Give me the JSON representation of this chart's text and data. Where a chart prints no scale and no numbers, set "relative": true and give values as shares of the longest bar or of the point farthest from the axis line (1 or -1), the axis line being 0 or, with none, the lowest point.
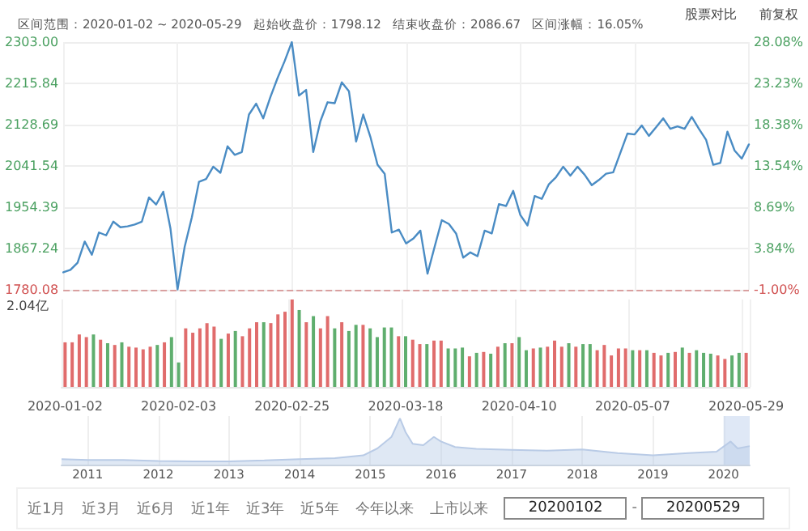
{
  "chart_data": [
    {
      "type": "line",
      "title": "区间范围：2020-01-02 ~ 2020-05-29   起始收盘价：1798.12   结束收盘价：2086.67   区间涨幅：16.05%",
      "annotations": [
        "股票对比",
        "前复权"
      ],
      "categories": [
        "2020-01-02",
        null,
        null,
        null,
        null,
        null,
        null,
        null,
        null,
        null,
        null,
        null,
        null,
        null,
        null,
        null,
        "2020-02-03",
        null,
        null,
        null,
        null,
        null,
        null,
        null,
        null,
        null,
        null,
        null,
        null,
        null,
        null,
        null,
        "2020-02-25",
        null,
        null,
        null,
        null,
        null,
        null,
        null,
        null,
        null,
        null,
        null,
        null,
        null,
        null,
        null,
        "2020-03-18",
        null,
        null,
        null,
        null,
        null,
        null,
        null,
        null,
        null,
        null,
        null,
        null,
        null,
        null,
        null,
        "2020-04-10",
        null,
        null,
        null,
        null,
        null,
        null,
        null,
        null,
        null,
        null,
        null,
        null,
        null,
        null,
        null,
        "2020-05-07",
        null,
        null,
        null,
        null,
        null,
        null,
        null,
        null,
        null,
        null,
        null,
        null,
        null,
        null,
        null,
        "2020-05-29"
      ],
      "series": [
        {
          "color": "#4a8cc4",
          "values": [
            1817,
            1822,
            1837,
            1882,
            1854,
            1901,
            1895,
            1924,
            1912,
            1914,
            1918,
            1924,
            1975,
            1960,
            1987,
            1910,
            1781,
            1871,
            1933,
            2008,
            2014,
            2040,
            2027,
            2083,
            2065,
            2071,
            2150,
            2173,
            2142,
            2187,
            2227,
            2263,
            2303,
            2190,
            2202,
            2071,
            2136,
            2176,
            2174,
            2218,
            2199,
            2093,
            2150,
            2103,
            2044,
            2025,
            1901,
            1907,
            1878,
            1888,
            1905,
            1814,
            1871,
            1927,
            1919,
            1899,
            1848,
            1859,
            1851,
            1905,
            1899,
            1961,
            1957,
            1989,
            1938,
            1916,
            1978,
            1972,
            2003,
            2018,
            2040,
            2021,
            2040,
            2023,
            2001,
            2012,
            2025,
            2028,
            2069,
            2110,
            2108,
            2127,
            2105,
            2123,
            2142,
            2120,
            2125,
            2120,
            2145,
            2120,
            2097,
            2044,
            2048,
            2114,
            2074,
            2057,
            2087
          ]
        }
      ],
      "ylim": [
        1780.08,
        2303
      ],
      "yticks": [
        1780.08,
        1867.24,
        1954.39,
        2041.54,
        2128.69,
        2215.84,
        {
          "value": 2303,
          "label": "2303.00"
        }
      ],
      "y2lim": [
        -1,
        28.08
      ],
      "y2ticks": [
        {
          "value": -1,
          "label": "-1.00%"
        },
        {
          "value": 3.84,
          "label": "3.84%"
        },
        {
          "value": 8.69,
          "label": "8.69%"
        },
        {
          "value": 13.54,
          "label": "13.54%"
        },
        {
          "value": 18.38,
          "label": "18.38%"
        },
        {
          "value": 23.23,
          "label": "23.23%"
        },
        {
          "value": 28.08,
          "label": "28.08%"
        }
      ],
      "ref_lines": [
        {
          "axis": "y",
          "value": 1780.08,
          "color": "#d9a0a0",
          "line_style": "dashed"
        }
      ],
      "grid": true,
      "line_style": "solid",
      "tick_labels": "y"
    },
    {
      "type": "bar",
      "relative": true,
      "annotations": [
        "2.04亿"
      ],
      "categories": [
        "2020-01-02",
        null,
        null,
        null,
        null,
        null,
        null,
        null,
        null,
        null,
        null,
        null,
        null,
        null,
        null,
        null,
        "2020-02-03",
        null,
        null,
        null,
        null,
        null,
        null,
        null,
        null,
        null,
        null,
        null,
        null,
        null,
        null,
        null,
        "2020-02-25",
        null,
        null,
        null,
        null,
        null,
        null,
        null,
        null,
        null,
        null,
        null,
        null,
        null,
        null,
        null,
        "2020-03-18",
        null,
        null,
        null,
        null,
        null,
        null,
        null,
        null,
        null,
        null,
        null,
        null,
        null,
        null,
        null,
        "2020-04-10",
        null,
        null,
        null,
        null,
        null,
        null,
        null,
        null,
        null,
        null,
        null,
        null,
        null,
        null,
        null,
        "2020-05-07",
        null,
        null,
        null,
        null,
        null,
        null,
        null,
        null,
        null,
        null,
        null,
        null,
        null,
        null,
        null,
        "2020-05-29"
      ],
      "values": [
        0.51,
        0.51,
        0.6,
        0.57,
        0.6,
        0.54,
        0.5,
        0.48,
        0.51,
        0.46,
        0.45,
        0.43,
        0.46,
        0.48,
        0.51,
        0.57,
        0.28,
        0.67,
        0.62,
        0.67,
        0.73,
        0.69,
        0.55,
        0.61,
        0.64,
        0.58,
        0.67,
        0.74,
        0.74,
        0.73,
        0.83,
        0.86,
        1,
        0.88,
        0.74,
        0.81,
        0.67,
        0.81,
        0.67,
        0.74,
        0.64,
        0.71,
        0.71,
        0.67,
        0.57,
        0.68,
        0.68,
        0.58,
        0.58,
        0.54,
        0.49,
        0.49,
        0.53,
        0.53,
        0.44,
        0.44,
        0.45,
        0.35,
        0.39,
        0.4,
        0.38,
        0.46,
        0.5,
        0.5,
        0.57,
        0.42,
        0.44,
        0.45,
        0.46,
        0.53,
        0.46,
        0.5,
        0.46,
        0.49,
        0.49,
        0.42,
        0.48,
        0.36,
        0.44,
        0.44,
        0.42,
        0.42,
        0.42,
        0.39,
        0.36,
        0.39,
        0.4,
        0.45,
        0.39,
        0.42,
        0.39,
        0.38,
        0.36,
        0.32,
        0.36,
        0.39,
        0.39
      ],
      "colors": [
        "#e06c6c",
        "#e06c6c",
        "#e06c6c",
        "#e06c6c",
        "#5fae6e",
        "#e06c6c",
        "#5fae6e",
        "#e06c6c",
        "#5fae6e",
        "#e06c6c",
        "#e06c6c",
        "#e06c6c",
        "#e06c6c",
        "#5fae6e",
        "#e06c6c",
        "#5fae6e",
        "#5fae6e",
        "#e06c6c",
        "#e06c6c",
        "#e06c6c",
        "#e06c6c",
        "#e06c6c",
        "#5fae6e",
        "#e06c6c",
        "#5fae6e",
        "#e06c6c",
        "#e06c6c",
        "#e06c6c",
        "#5fae6e",
        "#e06c6c",
        "#e06c6c",
        "#e06c6c",
        "#e06c6c",
        "#5fae6e",
        "#e06c6c",
        "#5fae6e",
        "#e06c6c",
        "#e06c6c",
        "#5fae6e",
        "#e06c6c",
        "#5fae6e",
        "#5fae6e",
        "#e06c6c",
        "#5fae6e",
        "#5fae6e",
        "#5fae6e",
        "#5fae6e",
        "#e06c6c",
        "#5fae6e",
        "#e06c6c",
        "#e06c6c",
        "#5fae6e",
        "#e06c6c",
        "#e06c6c",
        "#5fae6e",
        "#5fae6e",
        "#5fae6e",
        "#e06c6c",
        "#5fae6e",
        "#e06c6c",
        "#5fae6e",
        "#e06c6c",
        "#5fae6e",
        "#e06c6c",
        "#5fae6e",
        "#5fae6e",
        "#e06c6c",
        "#5fae6e",
        "#e06c6c",
        "#e06c6c",
        "#e06c6c",
        "#5fae6e",
        "#e06c6c",
        "#5fae6e",
        "#5fae6e",
        "#e06c6c",
        "#e06c6c",
        "#e06c6c",
        "#e06c6c",
        "#e06c6c",
        "#5fae6e",
        "#e06c6c",
        "#5fae6e",
        "#e06c6c",
        "#e06c6c",
        "#5fae6e",
        "#e06c6c",
        "#5fae6e",
        "#e06c6c",
        "#5fae6e",
        "#5fae6e",
        "#5fae6e",
        "#e06c6c",
        "#e06c6c",
        "#5fae6e",
        "#5fae6e",
        "#e06c6c"
      ],
      "grid": "x"
    },
    {
      "type": "area",
      "relative": true,
      "x": [
        2010.63,
        2011,
        2011.5,
        2012,
        2012.5,
        2013,
        2013.5,
        2014,
        2014.5,
        2014.9,
        2015.1,
        2015.3,
        2015.42,
        2015.5,
        2015.6,
        2015.75,
        2015.9,
        2016,
        2016.2,
        2016.5,
        2017,
        2017.5,
        2018,
        2018.5,
        2019,
        2019.5,
        2019.9,
        2020.1,
        2020.2,
        2020.37
      ],
      "series": [
        {
          "color": "#b9cbe6",
          "values": [
            0.12,
            0.1,
            0.1,
            0.08,
            0.07,
            0.07,
            0.09,
            0.12,
            0.14,
            0.2,
            0.35,
            0.6,
            1,
            0.7,
            0.45,
            0.42,
            0.6,
            0.5,
            0.38,
            0.34,
            0.32,
            0.3,
            0.33,
            0.25,
            0.2,
            0.25,
            0.28,
            0.5,
            0.35,
            0.4
          ]
        }
      ],
      "xlim": [
        2010.63,
        2020.37
      ],
      "xticks": [
        2011,
        2012,
        2013,
        2014,
        2015,
        2016,
        2017,
        2018,
        2019,
        2020
      ],
      "bands": [
        {
          "axis": "x",
          "from": 2020,
          "to": 2020.37,
          "color": "#c9d9f0"
        }
      ],
      "annotations": [
        "近1月",
        "近3月",
        "近6月",
        "近1年",
        "近3年",
        "近5年",
        "今年以来",
        "上市以来",
        "20200102",
        "-",
        "20200529"
      ],
      "grid": "x"
    }
  ]
}
